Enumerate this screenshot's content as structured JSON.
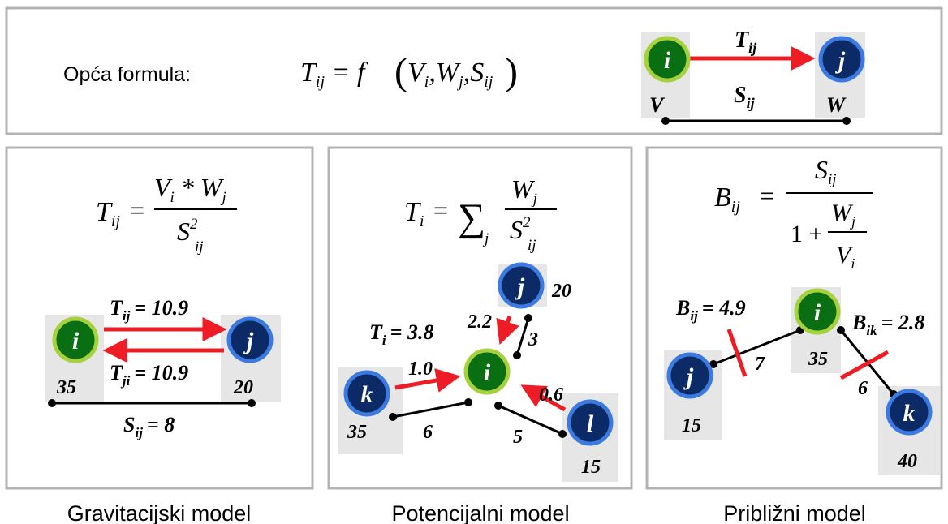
{
  "top": {
    "formula_label": "Opća formula:",
    "formula": {
      "T": "T",
      "ij": "ij",
      "eq": " = f",
      "open": "(",
      "V": "V",
      "i": "i",
      "W": "W",
      "j": "j",
      "S": "S",
      "close": ")",
      "comma": ","
    },
    "diagram": {
      "node_i": "i",
      "node_j": "j",
      "arrow": "T",
      "arrow_sub": "ij",
      "V": "V",
      "W": "W",
      "S": "S",
      "S_sub": "ij"
    }
  },
  "gravity": {
    "caption": "Gravitacijski model",
    "formula": {
      "T": "T",
      "T_sub": "ij",
      "eq": "=",
      "num": "V",
      "num_sub": "i",
      "mul": " * W",
      "num2_sub": "j",
      "den": "S",
      "den_sub": "ij",
      "den_sup": "2"
    },
    "node_i": "i",
    "node_j": "j",
    "label_Tij": "T",
    "label_Tij_sub": "ij",
    "label_Tij_val": "= 10.9",
    "label_Tji": "T",
    "label_Tji_sub": "ji",
    "label_Tji_val": "= 10.9",
    "val_i": "35",
    "val_j": "20",
    "label_S": "S",
    "label_S_sub": "ij",
    "label_S_val": "= 8"
  },
  "potential": {
    "caption": "Potencijalni model",
    "formula": {
      "T": "T",
      "T_sub": "i",
      "eq": "=",
      "sum": "∑",
      "sum_sub": "j",
      "num": "W",
      "num_sub": "j",
      "den": "S",
      "den_sub": "ij",
      "den_sup": "2"
    },
    "node_i": "i",
    "node_j": "j",
    "node_k": "k",
    "node_l": "l",
    "val_j": "20",
    "val_k": "35",
    "val_l": "15",
    "label_Ti": "T",
    "label_Ti_sub": "i",
    "label_Ti_val": "= 3.8",
    "flow_j": "2.2",
    "flow_k": "1.0",
    "flow_l": "0.6",
    "dist_j": "3",
    "dist_k": "6",
    "dist_l": "5"
  },
  "approx": {
    "caption": "Približni model",
    "formula": {
      "B": "B",
      "B_sub": "ij",
      "eq": "=",
      "num": "S",
      "num_sub": "ij",
      "one": "1 +",
      "W": "W",
      "W_sub": "j",
      "V": "V",
      "V_sub": "i"
    },
    "node_i": "i",
    "node_j": "j",
    "node_k": "k",
    "val_i": "35",
    "val_j": "15",
    "val_k": "40",
    "label_Bij": "B",
    "label_Bij_sub": "ij",
    "label_Bij_val": "= 4.9",
    "label_Bik": "B",
    "label_Bik_sub": "ik",
    "label_Bik_val": "= 2.8",
    "dist_ij": "7",
    "dist_ik": "6"
  },
  "colors": {
    "green_node": "#0a6e12",
    "green_ring": "#a6d13c",
    "blue_node": "#0b2a66",
    "blue_ring": "#3b7ae0",
    "arrow_red": "#ee1c24",
    "panel_border": "#b3b3b3",
    "shade": "#e6e6e6"
  }
}
